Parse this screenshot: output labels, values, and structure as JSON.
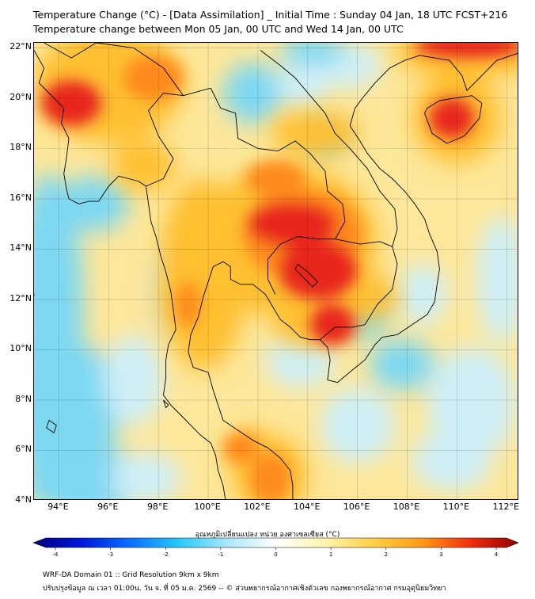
{
  "titles": {
    "line1": "Temperature Change (°C) - [Data Assimilation] _ Initial Time : Sunday 04 Jan, 18 UTC FCST+216",
    "line2": "Temperature change between Mon 05 Jan, 00 UTC and Wed 14 Jan, 00 UTC"
  },
  "map": {
    "lat_labels": [
      "22°N",
      "20°N",
      "18°N",
      "16°N",
      "14°N",
      "12°N",
      "10°N",
      "8°N",
      "6°N",
      "4°N"
    ],
    "lon_labels": [
      "94°E",
      "96°E",
      "98°E",
      "100°E",
      "102°E",
      "104°E",
      "106°E",
      "108°E",
      "110°E",
      "112°E"
    ],
    "lat_range": [
      4,
      22.2
    ],
    "lon_range": [
      93,
      112.5
    ],
    "colors": {
      "background": "#fde79a",
      "cold": "#7ed8f2",
      "cool": "#cfeff7",
      "warm": "#ffc033",
      "hot": "#ff8a1a",
      "very_hot": "#e8261a",
      "coast": "#000000"
    }
  },
  "colorbar": {
    "title": "อุณหภูมิเปลี่ยนแปลง หน่วย องศาเซลเซียส (°C)",
    "min": -4,
    "max": 4,
    "ticks": [
      "-4",
      "-3",
      "-2",
      "-1",
      "0",
      "1",
      "2",
      "3",
      "4"
    ],
    "colors": [
      "#00007a",
      "#0018d8",
      "#0a70ff",
      "#28c8f8",
      "#a8e8f8",
      "#ffffff",
      "#fff4b0",
      "#ffd048",
      "#ff9a18",
      "#f03010",
      "#900000"
    ]
  },
  "footer": {
    "line1": "WRF-DA Domain 01 :: Grid Resolution 9km x 9km",
    "line2": "ปรับปรุงข้อมูล ณ เวลา 01:00น. วัน จ. ที่ 05 ม.ค. 2569 -- © ส่วนพยากรณ์อากาศเชิงตัวเลข กองพยากรณ์อากาศ กรมอุตุนิยมวิทยา"
  }
}
